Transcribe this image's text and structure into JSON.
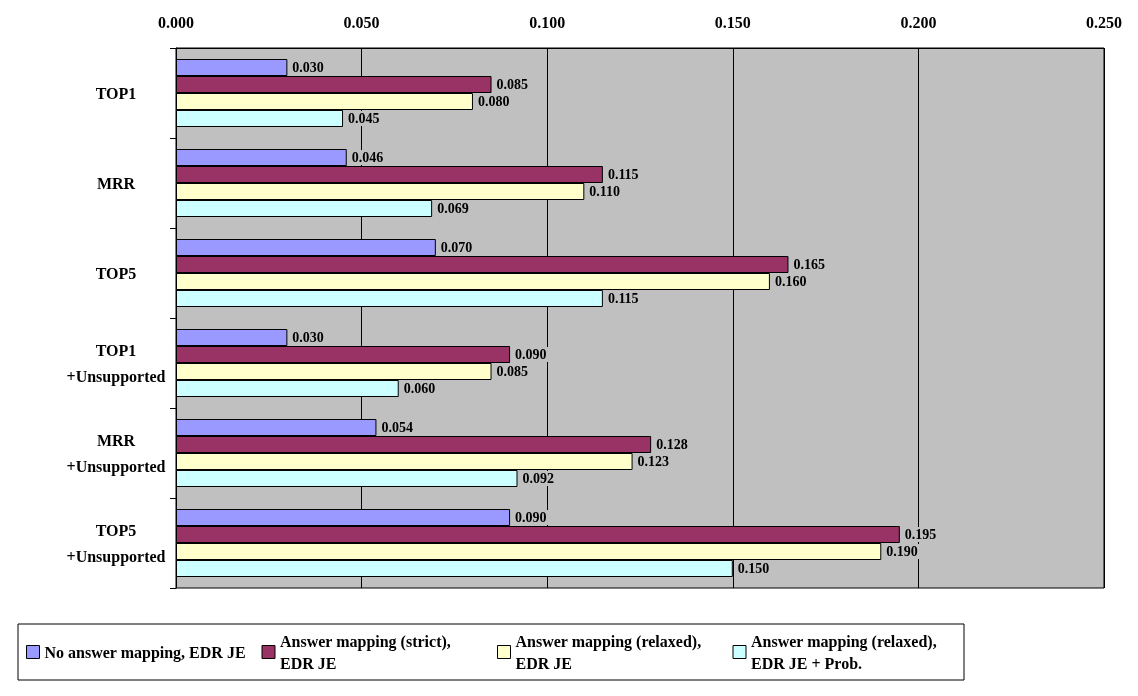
{
  "chart_data": {
    "type": "bar",
    "orientation": "horizontal",
    "categories": [
      "TOP1",
      "MRR",
      "TOP5",
      "TOP1\n+Unsupported",
      "MRR\n+Unsupported",
      "TOP5\n+Unsupported"
    ],
    "series": [
      {
        "name": "No answer mapping, EDR JE",
        "color": "#9999ff",
        "values": [
          0.03,
          0.046,
          0.07,
          0.03,
          0.054,
          0.09
        ],
        "value_labels": [
          "0.030",
          "0.046",
          "0.070",
          "0.030",
          "0.054",
          "0.090"
        ]
      },
      {
        "name": "Answer mapping (strict), EDR JE",
        "color": "#993366",
        "values": [
          0.085,
          0.115,
          0.165,
          0.09,
          0.128,
          0.195
        ],
        "value_labels": [
          "0.085",
          "0.115",
          "0.165",
          "0.090",
          "0.128",
          "0.195"
        ]
      },
      {
        "name": "Answer mapping (relaxed), EDR JE",
        "color": "#ffffcc",
        "values": [
          0.08,
          0.11,
          0.16,
          0.085,
          0.123,
          0.19
        ],
        "value_labels": [
          "0.080",
          "0.110",
          "0.160",
          "0.085",
          "0.123",
          "0.190"
        ]
      },
      {
        "name": "Answer mapping (relaxed), EDR JE + Prob.",
        "color": "#ccffff",
        "values": [
          0.045,
          0.069,
          0.115,
          0.06,
          0.092,
          0.15
        ],
        "value_labels": [
          "0.045",
          "0.069",
          "0.115",
          "0.060",
          "0.092",
          "0.150"
        ]
      }
    ],
    "xlim": [
      0,
      0.25
    ],
    "xticks": [
      {
        "value": 0,
        "label": "0.000"
      },
      {
        "value": 0.05,
        "label": "0.050"
      },
      {
        "value": 0.1,
        "label": "0.100"
      },
      {
        "value": 0.15,
        "label": "0.150"
      },
      {
        "value": 0.2,
        "label": "0.200"
      },
      {
        "value": 0.25,
        "label": "0.250"
      }
    ],
    "grid": "x",
    "legend": "bottom"
  }
}
